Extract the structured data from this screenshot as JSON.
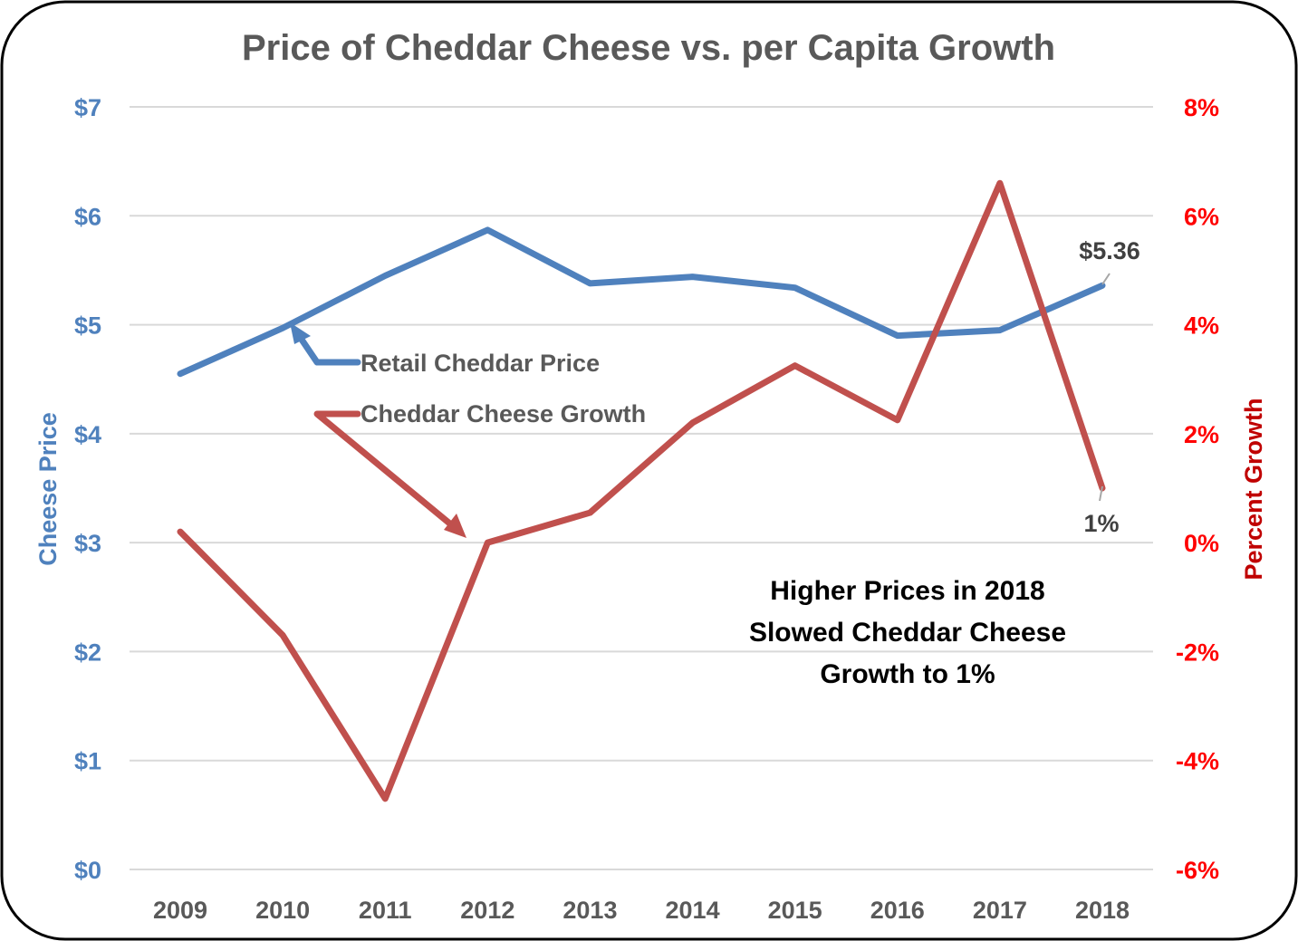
{
  "chart_data": {
    "type": "line",
    "title": "Price of Cheddar Cheese vs. per Capita Growth",
    "categories": [
      "2009",
      "2010",
      "2011",
      "2012",
      "2013",
      "2014",
      "2015",
      "2016",
      "2017",
      "2018"
    ],
    "y_left": {
      "label": "Cheese Price",
      "lim": [
        0,
        7
      ],
      "ticks": [
        "$0",
        "$1",
        "$2",
        "$3",
        "$4",
        "$5",
        "$6",
        "$7"
      ],
      "color": "#4f81bd"
    },
    "y_right": {
      "label": "Percent Growth",
      "lim": [
        -6,
        8
      ],
      "ticks": [
        "-6%",
        "-4%",
        "-2%",
        "0%",
        "2%",
        "4%",
        "6%",
        "8%"
      ],
      "color": "#ff0000"
    },
    "grid": true,
    "series": [
      {
        "name": "Retail Cheddar Price",
        "axis": "left",
        "color": "#4f81bd",
        "values": [
          4.55,
          4.97,
          5.45,
          5.87,
          5.38,
          5.44,
          5.34,
          4.9,
          4.95,
          5.36
        ]
      },
      {
        "name": "Cheddar Cheese Growth",
        "axis": "right",
        "color": "#c0504d",
        "values": [
          0.2,
          -1.7,
          -4.7,
          0.0,
          0.55,
          2.2,
          3.25,
          2.25,
          6.6,
          1.0
        ]
      }
    ],
    "data_labels": {
      "price_2018": "$5.36",
      "growth_2018": "1%"
    },
    "annotation": [
      "Higher Prices in 2018",
      "Slowed Cheddar Cheese",
      "Growth to 1%"
    ]
  }
}
